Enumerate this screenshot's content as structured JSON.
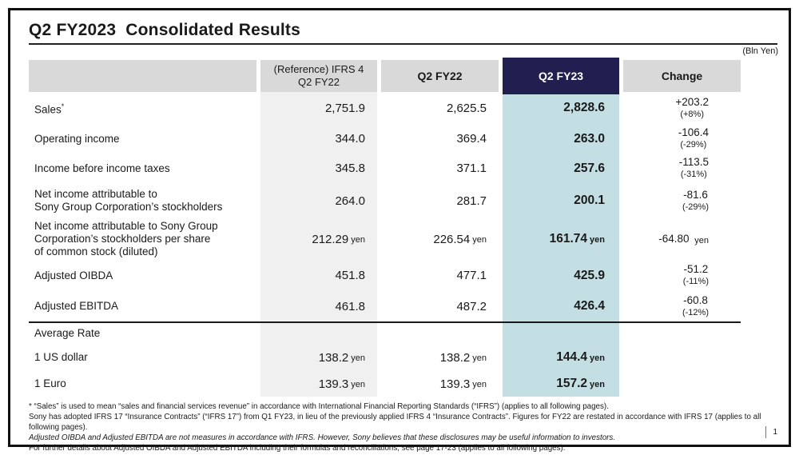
{
  "colors": {
    "navy": "#201F50",
    "fy23_fill": "#C4DFE3",
    "header_gray": "#D9D9D9",
    "ref_fill": "#F0F0F0"
  },
  "title": "Q2 FY2023  Consolidated Results",
  "unit_note": "(Bln Yen)",
  "header": {
    "ref_line1": "(Reference) IFRS 4",
    "ref_line2": "Q2 FY22",
    "fy22": "Q2 FY22",
    "fy23": "Q2 FY23",
    "change": "Change"
  },
  "rows": [
    {
      "label1": "Sales",
      "sup": "*",
      "ref": "2,751.9",
      "fy22": "2,625.5",
      "fy23": "2,828.6",
      "chg": "+203.2",
      "chg_pct": "(+8%)"
    },
    {
      "label1": "Operating income",
      "ref": "344.0",
      "fy22": "369.4",
      "fy23": "263.0",
      "chg": "-106.4",
      "chg_pct": "(-29%)"
    },
    {
      "label1": "Income before income taxes",
      "ref": "345.8",
      "fy22": "371.1",
      "fy23": "257.6",
      "chg": "-113.5",
      "chg_pct": "(-31%)"
    },
    {
      "label1": "Net income attributable to",
      "label2": "Sony Group Corporation’s stockholders",
      "ref": "264.0",
      "fy22": "281.7",
      "fy23": "200.1",
      "chg": "-81.6",
      "chg_pct": "(-29%)"
    },
    {
      "label1": "Net income attributable to Sony Group",
      "label2": "Corporation’s stockholders per share",
      "label3": "of common stock (diluted)",
      "ref": "212.29",
      "ref_unit": "yen",
      "fy22": "226.54",
      "fy22_unit": "yen",
      "fy23": "161.74",
      "fy23_unit": "yen",
      "chg": "-64.80",
      "chg_unit": "yen"
    },
    {
      "label1": "Adjusted OIBDA",
      "ref": "451.8",
      "fy22": "477.1",
      "fy23": "425.9",
      "chg": "-51.2",
      "chg_pct": "(-11%)"
    },
    {
      "label1": "Adjusted EBITDA",
      "ref": "461.8",
      "fy22": "487.2",
      "fy23": "426.4",
      "chg": "-60.8",
      "chg_pct": "(-12%)"
    }
  ],
  "rate_section": {
    "header": "Average Rate",
    "rows": [
      {
        "label": "1 US dollar",
        "ref": "138.2",
        "ref_unit": "yen",
        "fy22": "138.2",
        "fy22_unit": "yen",
        "fy23": "144.4",
        "fy23_unit": "yen"
      },
      {
        "label": "1 Euro",
        "ref": "139.3",
        "ref_unit": "yen",
        "fy22": "139.3",
        "fy22_unit": "yen",
        "fy23": "157.2",
        "fy23_unit": "yen"
      }
    ]
  },
  "footnotes": [
    "* “Sales” is used to mean “sales and financial services revenue” in accordance with International Financial Reporting Standards (“IFRS”) (applies to all following pages).",
    "Sony has adopted IFRS 17 “Insurance Contracts” (“IFRS 17”) from Q1 FY23, in lieu of the previously applied IFRS 4 “Insurance Contracts”. Figures for FY22 are restated in accordance with IFRS 17 (applies to all following pages).",
    "Adjusted OIBDA and Adjusted EBITDA are not measures in accordance with IFRS. However, Sony believes that these disclosures may be useful information to investors.",
    "For further details about Adjusted OIBDA and Adjusted EBITDA including their formulas and reconciliations, see page 17-23 (applies to all following pages)."
  ],
  "page_number": "1"
}
